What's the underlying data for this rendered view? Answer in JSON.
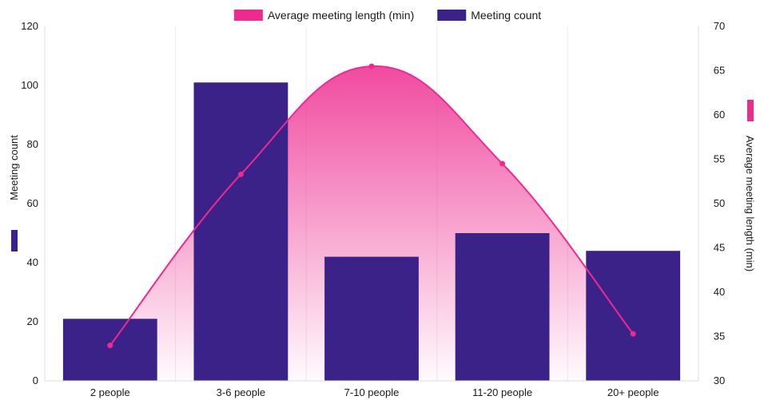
{
  "chart_data": {
    "type": "bar",
    "categories": [
      "2 people",
      "3-6 people",
      "7-10 people",
      "11-20 people",
      "20+ people"
    ],
    "series": [
      {
        "name": "Meeting count",
        "type": "bar",
        "axis": "left",
        "color": "#3b2288",
        "values": [
          21,
          101,
          42,
          50,
          44
        ]
      },
      {
        "name": "Average meeting length (min)",
        "type": "area-line",
        "axis": "right",
        "color": "#ee2a8f",
        "values": [
          34,
          53.3,
          65.5,
          54.5,
          35.3
        ]
      }
    ],
    "y_left": {
      "label": "Meeting count",
      "range": [
        0,
        120
      ],
      "ticks": [
        "0",
        "20",
        "40",
        "60",
        "80",
        "100",
        "120"
      ]
    },
    "y_right": {
      "label": "Average meeting length (min)",
      "range": [
        30,
        70
      ],
      "ticks": [
        "30",
        "35",
        "40",
        "45",
        "50",
        "55",
        "60",
        "65",
        "70"
      ]
    },
    "legend": {
      "placement": "top-center",
      "items": [
        {
          "label": "Average meeting length (min)",
          "color": "#ee2a8f"
        },
        {
          "label": "Meeting count",
          "color": "#3b2288"
        }
      ]
    },
    "grid": "vertical"
  }
}
